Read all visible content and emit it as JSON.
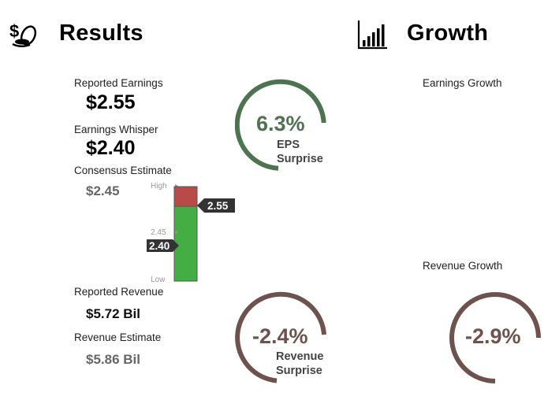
{
  "results": {
    "title": "Results",
    "icon": "money-coins-icon",
    "reported_earnings_label": "Reported Earnings",
    "reported_earnings_value": "$2.55",
    "earnings_whisper_label": "Earnings Whisper",
    "earnings_whisper_value": "$2.40",
    "consensus_label": "Consensus Estimate",
    "consensus_value": "$2.45",
    "reported_revenue_label": "Reported Revenue",
    "reported_revenue_value": "$5.72 Bil",
    "revenue_estimate_label": "Revenue Estimate",
    "revenue_estimate_value": "$5.86 Bil"
  },
  "estimate_bar": {
    "high_label": "High",
    "mid_label": "2.45",
    "low_label": "Low",
    "reported_tag": "2.55",
    "whisper_tag": "2.40"
  },
  "eps_gauge": {
    "pct": "6.3%",
    "line1": "EPS",
    "line2": "Surprise",
    "color": "#4e7350"
  },
  "revenue_gauge": {
    "pct": "-2.4%",
    "line1": "Revenue",
    "line2": "Surprise",
    "color": "#6e524d"
  },
  "growth": {
    "title": "Growth",
    "icon": "bar-chart-icon",
    "earnings_growth_label": "Earnings Growth",
    "revenue_growth_label": "Revenue Growth",
    "revenue_growth_pct": "-2.9%",
    "color": "#6e524d"
  },
  "colors": {
    "bar_red": "#b84a4a",
    "bar_green": "#44ad44",
    "tag_dark": "#333333"
  }
}
